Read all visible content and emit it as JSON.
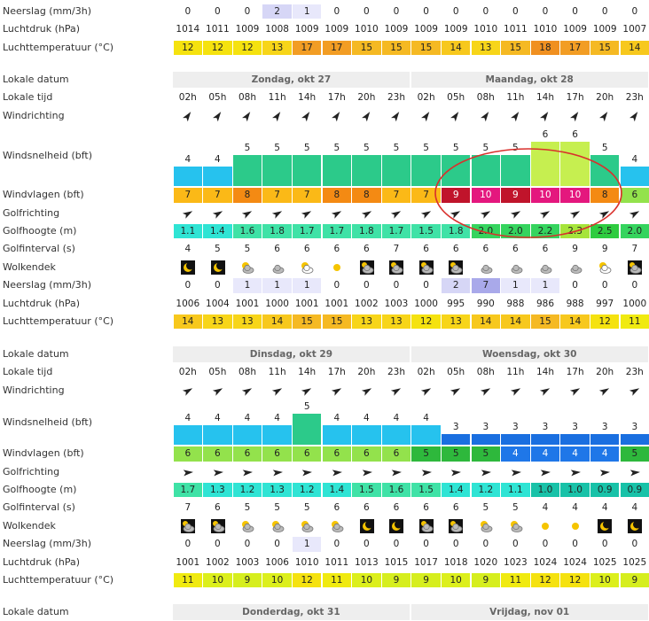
{
  "sections": [
    {
      "rows": [
        {
          "label": "Neerslag (mm/3h)",
          "values": [
            0,
            0,
            0,
            2,
            1,
            0,
            0,
            0,
            0,
            0,
            0,
            0,
            0,
            0,
            0,
            0
          ]
        },
        {
          "label": "Luchtdruk (hPa)",
          "values": [
            1014,
            1011,
            1009,
            1008,
            1009,
            1009,
            1010,
            1009,
            1009,
            1009,
            1010,
            1011,
            1010,
            1009,
            1009,
            1007
          ]
        },
        {
          "label": "Luchttemperatuur (°C)",
          "values": [
            12,
            12,
            12,
            13,
            17,
            17,
            15,
            15,
            15,
            14,
            13,
            15,
            18,
            17,
            15,
            14
          ]
        }
      ]
    },
    {
      "rows": [
        {
          "label": "Lokale datum",
          "days": [
            "Zondag, okt 27",
            "Maandag, okt 28"
          ]
        },
        {
          "label": "Lokale tijd",
          "values": [
            "02h",
            "05h",
            "08h",
            "11h",
            "14h",
            "17h",
            "20h",
            "23h",
            "02h",
            "05h",
            "08h",
            "11h",
            "14h",
            "17h",
            "20h",
            "23h"
          ]
        },
        {
          "label": "Windrichting"
        },
        {
          "label": "Windsnelheid (bft)",
          "values": [
            4,
            4,
            5,
            5,
            5,
            5,
            5,
            5,
            5,
            5,
            5,
            5,
            6,
            6,
            5,
            4
          ]
        },
        {
          "label": "Windvlagen (bft)",
          "values": [
            7,
            7,
            8,
            7,
            7,
            8,
            8,
            7,
            7,
            9,
            10,
            9,
            10,
            10,
            8,
            6
          ]
        },
        {
          "label": "Golfrichting"
        },
        {
          "label": "Golfhoogte (m)",
          "values": [
            "1.1",
            "1.4",
            "1.6",
            "1.8",
            "1.7",
            "1.7",
            "1.8",
            "1.7",
            "1.5",
            "1.8",
            "2.0",
            "2.0",
            "2.2",
            "2.3",
            "2.5",
            "2.0"
          ]
        },
        {
          "label": "Golfinterval (s)",
          "values": [
            4,
            5,
            5,
            6,
            6,
            6,
            6,
            7,
            6,
            6,
            6,
            6,
            6,
            9,
            9,
            7
          ]
        },
        {
          "label": "Wolkendek"
        },
        {
          "label": "Neerslag (mm/3h)",
          "values": [
            0,
            0,
            1,
            1,
            1,
            0,
            0,
            0,
            0,
            2,
            7,
            1,
            1,
            0,
            0,
            0
          ]
        },
        {
          "label": "Luchtdruk (hPa)",
          "values": [
            1006,
            1004,
            1001,
            1000,
            1001,
            1001,
            1002,
            1003,
            1000,
            995,
            990,
            988,
            986,
            988,
            997,
            1000
          ]
        },
        {
          "label": "Luchttemperatuur (°C)",
          "values": [
            14,
            13,
            13,
            14,
            15,
            15,
            13,
            13,
            12,
            13,
            14,
            14,
            15,
            14,
            12,
            11
          ]
        }
      ]
    },
    {
      "rows": [
        {
          "label": "Lokale datum",
          "days": [
            "Dinsdag, okt 29",
            "Woensdag, okt 30"
          ]
        },
        {
          "label": "Lokale tijd",
          "values": [
            "02h",
            "05h",
            "08h",
            "11h",
            "14h",
            "17h",
            "20h",
            "23h",
            "02h",
            "05h",
            "08h",
            "11h",
            "14h",
            "17h",
            "20h",
            "23h"
          ]
        },
        {
          "label": "Windrichting"
        },
        {
          "label": "Windsnelheid (bft)",
          "values": [
            4,
            4,
            4,
            4,
            5,
            4,
            4,
            4,
            4,
            3,
            3,
            3,
            3,
            3,
            3,
            3
          ]
        },
        {
          "label": "Windvlagen (bft)",
          "values": [
            6,
            6,
            6,
            6,
            6,
            6,
            6,
            6,
            5,
            5,
            5,
            4,
            4,
            4,
            4,
            5
          ]
        },
        {
          "label": "Golfrichting"
        },
        {
          "label": "Golfhoogte (m)",
          "values": [
            "1.7",
            "1.3",
            "1.2",
            "1.3",
            "1.2",
            "1.4",
            "1.5",
            "1.6",
            "1.5",
            "1.4",
            "1.2",
            "1.1",
            "1.0",
            "1.0",
            "0.9",
            "0.9"
          ]
        },
        {
          "label": "Golfinterval (s)",
          "values": [
            7,
            6,
            5,
            5,
            5,
            6,
            6,
            6,
            6,
            6,
            5,
            5,
            4,
            4,
            4,
            4
          ]
        },
        {
          "label": "Wolkendek"
        },
        {
          "label": "Neerslag (mm/3h)",
          "values": [
            0,
            0,
            0,
            0,
            1,
            0,
            0,
            0,
            0,
            0,
            0,
            0,
            0,
            0,
            0,
            0
          ]
        },
        {
          "label": "Luchtdruk (hPa)",
          "values": [
            1001,
            1002,
            1003,
            1006,
            1010,
            1011,
            1013,
            1015,
            1017,
            1018,
            1020,
            1023,
            1024,
            1024,
            1025,
            1025
          ]
        },
        {
          "label": "Luchttemperatuur (°C)",
          "values": [
            11,
            10,
            9,
            10,
            12,
            11,
            10,
            9,
            9,
            10,
            9,
            11,
            12,
            12,
            10,
            9
          ]
        }
      ]
    },
    {
      "rows": [
        {
          "label": "Lokale datum",
          "days": [
            "Donderdag, okt 31",
            "Vrijdag, nov 01"
          ]
        }
      ]
    }
  ]
}
